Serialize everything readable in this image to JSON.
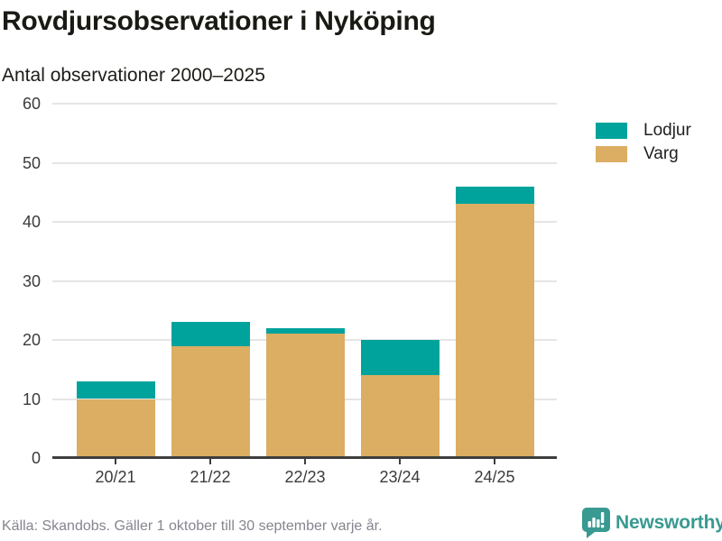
{
  "title": "Rovdjursobservationer i Nyköping",
  "subtitle": "Antal observationer 2000–2025",
  "legend": {
    "items": [
      {
        "label": "Lodjur",
        "color": "#00a39c"
      },
      {
        "label": "Varg",
        "color": "#dbae63"
      }
    ]
  },
  "footer": {
    "source": "Källa: Skandobs. Gäller 1 oktober till 30 september varje år.",
    "brand": "Newsworthy",
    "brand_color": "#389a90"
  },
  "colors": {
    "lodjur": "#00a39c",
    "varg": "#dbae63",
    "axis": "#3e3e3e",
    "gridline": "#e5e5e5",
    "tick_text": "#3b3b3b",
    "title_text": "#1a1a15",
    "source_text": "#85858f",
    "brand_teal": "#389a90"
  },
  "chart_data": {
    "type": "bar",
    "stacked": true,
    "categories": [
      "20/21",
      "21/22",
      "22/23",
      "23/24",
      "24/25"
    ],
    "series": [
      {
        "name": "Lodjur",
        "color": "#00a39c",
        "values": [
          3,
          4,
          1,
          6,
          3
        ]
      },
      {
        "name": "Varg",
        "color": "#dbae63",
        "values": [
          10,
          19,
          21,
          14,
          43
        ]
      }
    ],
    "totals": [
      13,
      23,
      22,
      20,
      46
    ],
    "stack_order_bottom_to_top": [
      "Varg",
      "Lodjur"
    ],
    "title": "Rovdjursobservationer i Nyköping",
    "subtitle": "Antal observationer 2000–2025",
    "xlabel": "",
    "ylabel": "",
    "ylim": [
      0,
      60
    ],
    "yticks": [
      0,
      10,
      20,
      30,
      40,
      50,
      60
    ],
    "grid": true,
    "legend_position": "top-right"
  }
}
